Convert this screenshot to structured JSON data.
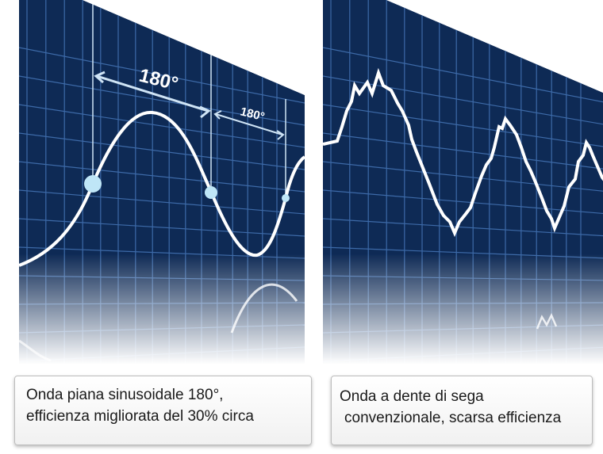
{
  "left_panel": {
    "angle_label_large": "180°",
    "angle_label_small": "180°",
    "caption_line1": "Onda piana sinusoidale 180°,",
    "caption_line2": "efficienza migliorata del 30% circa"
  },
  "right_panel": {
    "caption_line1": "Onda a dente di sega",
    "caption_line2": "convenzionale, scarsa efficienza"
  },
  "colors": {
    "grid_background": "#0e2a55",
    "grid_lines": "#3d6aa8",
    "wave": "#ffffff",
    "marker": "#bfe6f7"
  }
}
